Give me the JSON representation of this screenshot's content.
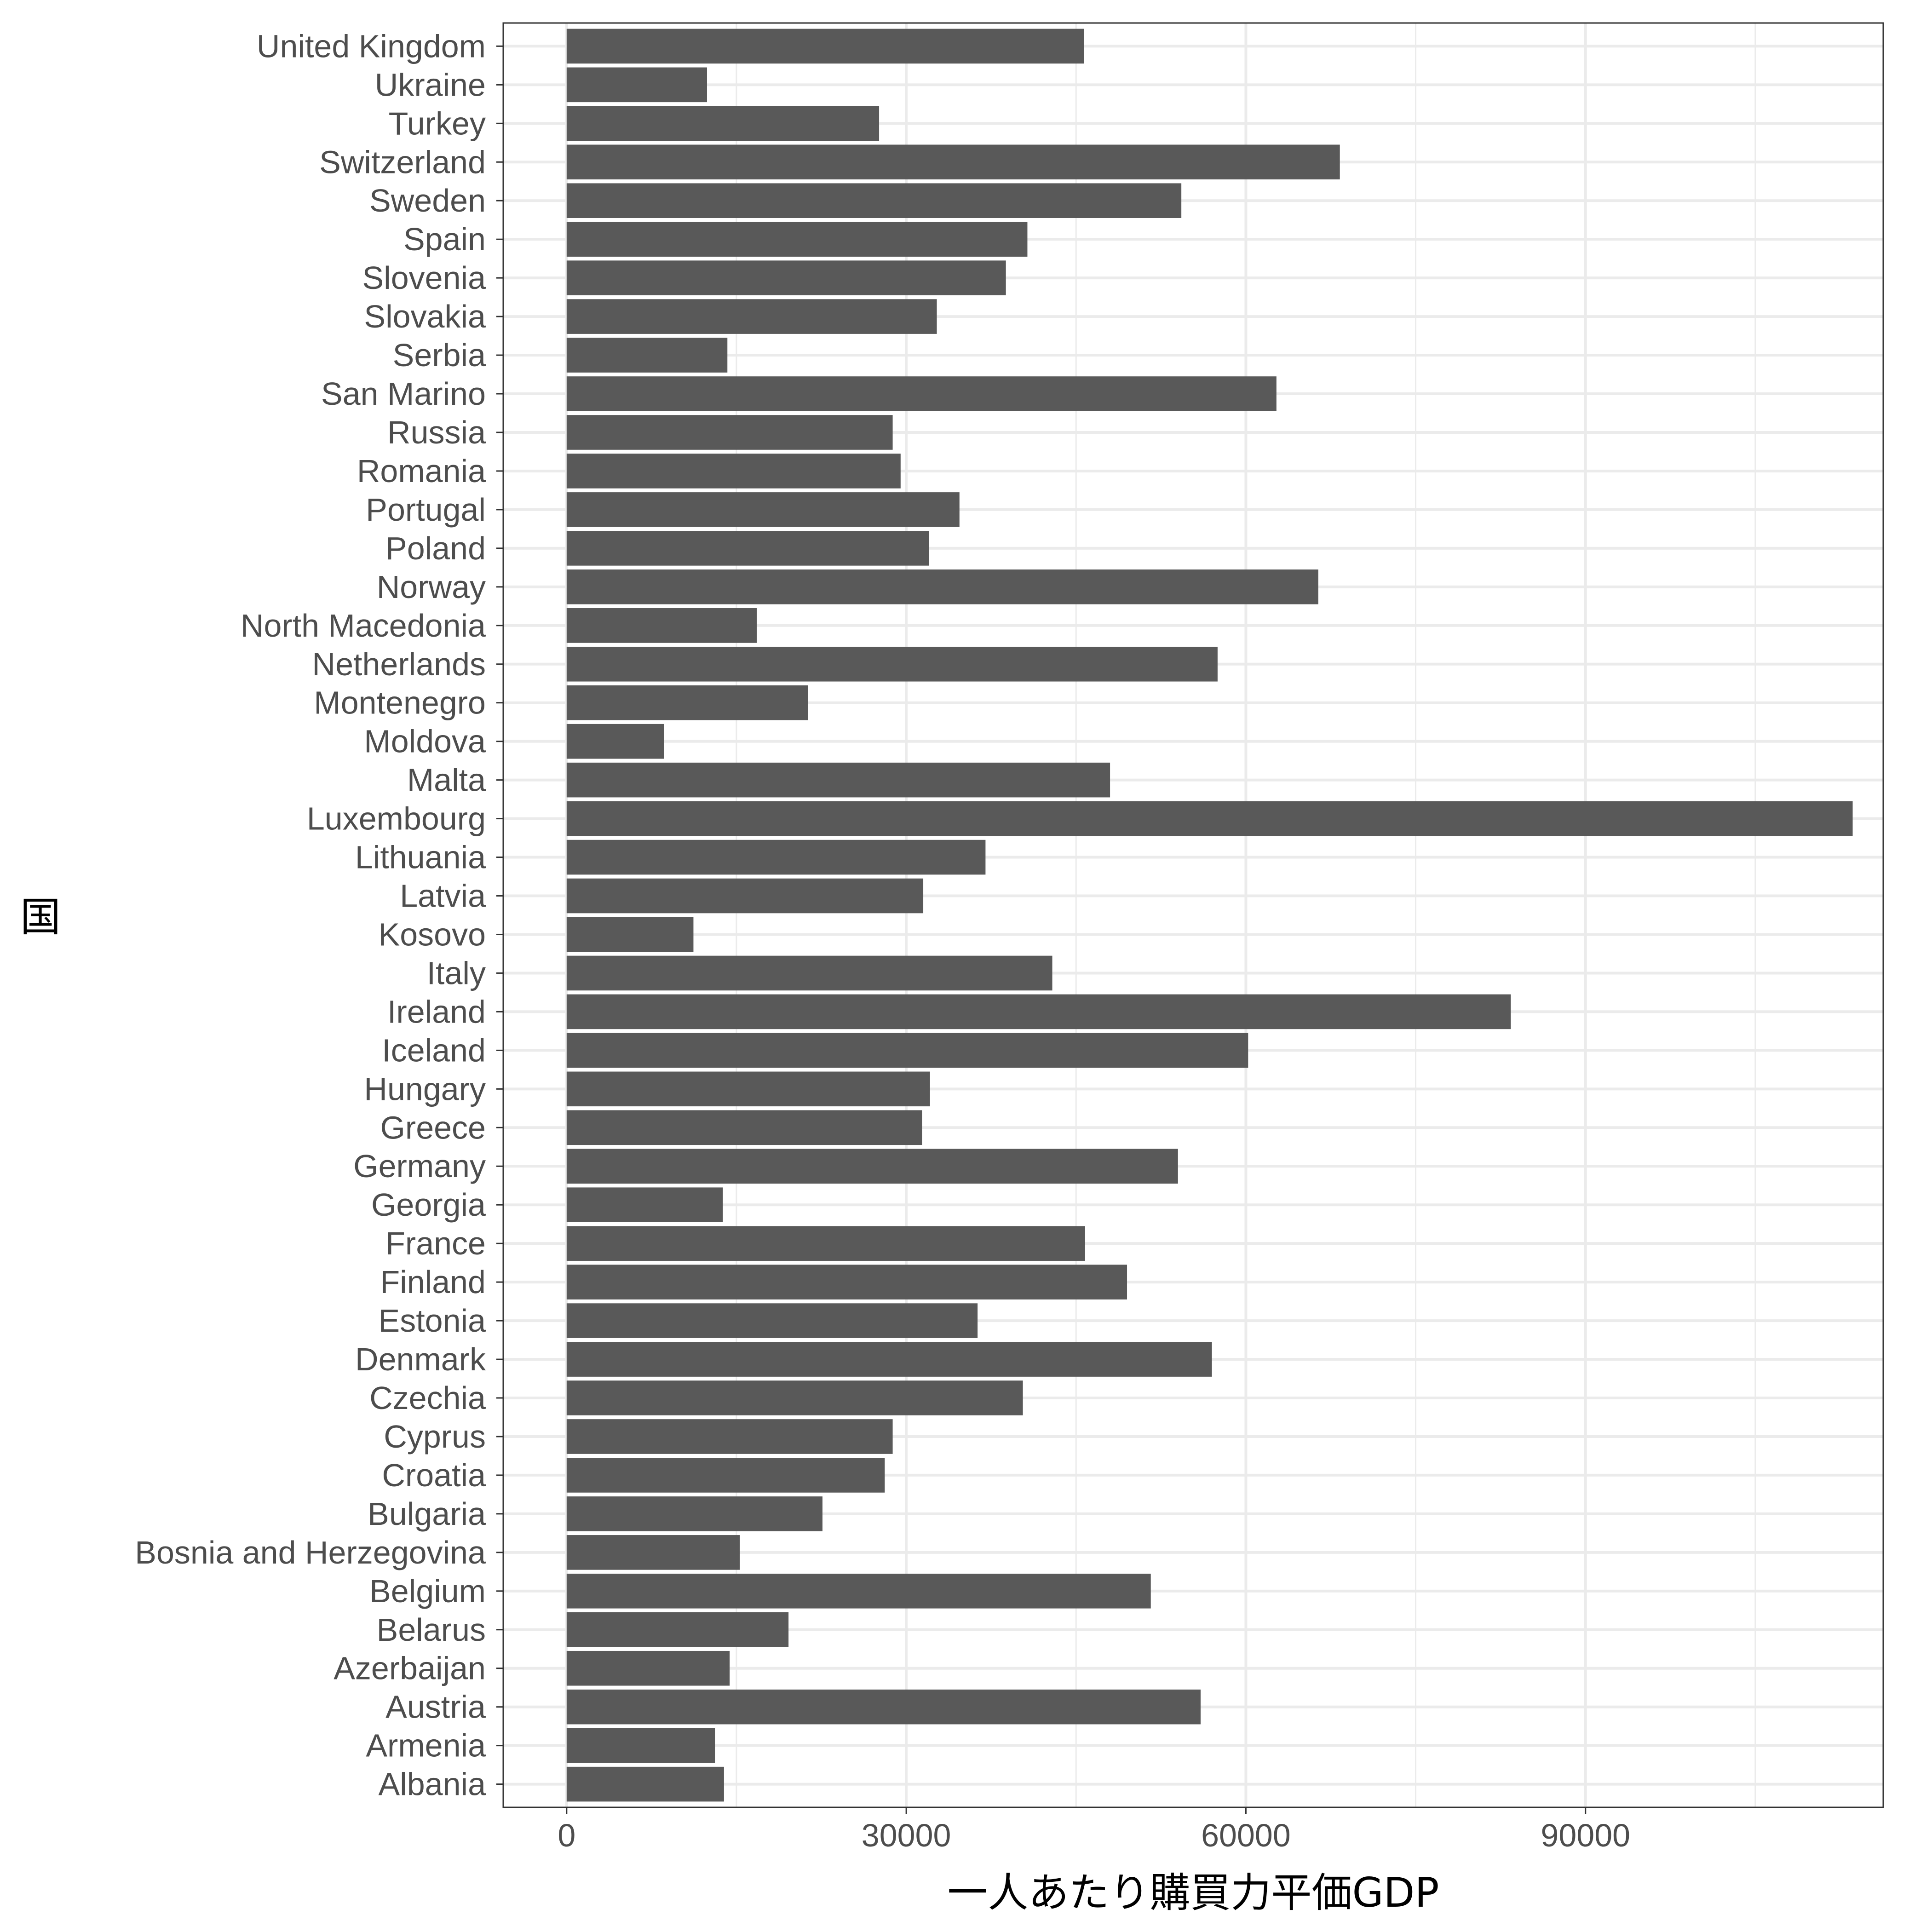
{
  "chart_data": {
    "type": "bar",
    "orientation": "horizontal",
    "xlabel": "一人あたり購買力平価GDP",
    "ylabel": "国",
    "xlim": [
      -5600,
      116300
    ],
    "xticks": [
      0,
      30000,
      60000,
      90000
    ],
    "x_minor_ticks": [
      15000,
      45000,
      75000,
      105000
    ],
    "grid": true,
    "bar_color": "#595959",
    "categories": [
      "United Kingdom",
      "Ukraine",
      "Turkey",
      "Switzerland",
      "Sweden",
      "Spain",
      "Slovenia",
      "Slovakia",
      "Serbia",
      "San Marino",
      "Russia",
      "Romania",
      "Portugal",
      "Poland",
      "Norway",
      "North Macedonia",
      "Netherlands",
      "Montenegro",
      "Moldova",
      "Malta",
      "Luxembourg",
      "Lithuania",
      "Latvia",
      "Kosovo",
      "Italy",
      "Ireland",
      "Iceland",
      "Hungary",
      "Greece",
      "Germany",
      "Georgia",
      "France",
      "Finland",
      "Estonia",
      "Denmark",
      "Czechia",
      "Cyprus",
      "Croatia",
      "Bulgaria",
      "Bosnia and Herzegovina",
      "Belgium",
      "Belarus",
      "Azerbaijan",
      "Austria",
      "Armenia",
      "Albania"
    ],
    "values": [
      45700,
      12400,
      27600,
      68300,
      54300,
      40700,
      38800,
      32700,
      14200,
      62700,
      28800,
      29500,
      34700,
      32000,
      66400,
      16800,
      57500,
      21300,
      8600,
      48000,
      113600,
      37000,
      31500,
      11200,
      42900,
      83400,
      60200,
      32100,
      31400,
      54000,
      13800,
      45800,
      49500,
      36300,
      57000,
      40300,
      28800,
      28100,
      22600,
      15300,
      51600,
      19600,
      14400,
      56000,
      13100,
      13900
    ]
  }
}
